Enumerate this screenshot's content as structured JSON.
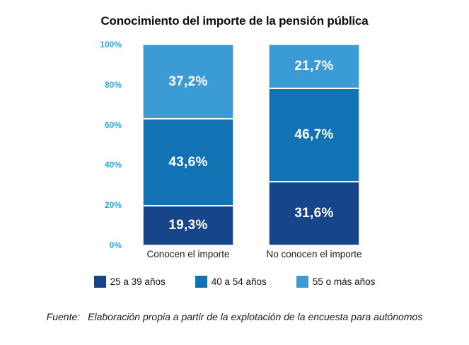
{
  "title": "Conocimiento del importe de la pensión pública",
  "footer": {
    "prefix": "Fuente:",
    "text": "Elaboración propia a partir de la explotación de la encuesta para autónomos"
  },
  "chart_data": {
    "type": "bar",
    "stacked": true,
    "orientation": "vertical",
    "title": "Conocimiento del importe de la pensión pública",
    "categories": [
      "Conocen el importe",
      "No conocen el importe"
    ],
    "series": [
      {
        "name": "25 a 39 años",
        "color": "#16458A",
        "values": [
          19.3,
          31.6
        ],
        "labels": [
          "19,3%",
          "31,6%"
        ]
      },
      {
        "name": "40 a 54 años",
        "color": "#1173B4",
        "values": [
          43.6,
          46.7
        ],
        "labels": [
          "43,6%",
          "46,7%"
        ]
      },
      {
        "name": "55 o más años",
        "color": "#3A9BD5",
        "values": [
          37.2,
          21.7
        ],
        "labels": [
          "37,2%",
          "21,7%"
        ]
      }
    ],
    "y_axis": {
      "min": 0,
      "max": 100,
      "ticks_top_to_bottom": [
        "100%",
        "80%",
        "60%",
        "40%",
        "20%",
        "0%"
      ],
      "tick_color": "#29A9E1",
      "grid": false
    },
    "value_label_color": "#FFFFFF",
    "legend_position": "bottom"
  }
}
